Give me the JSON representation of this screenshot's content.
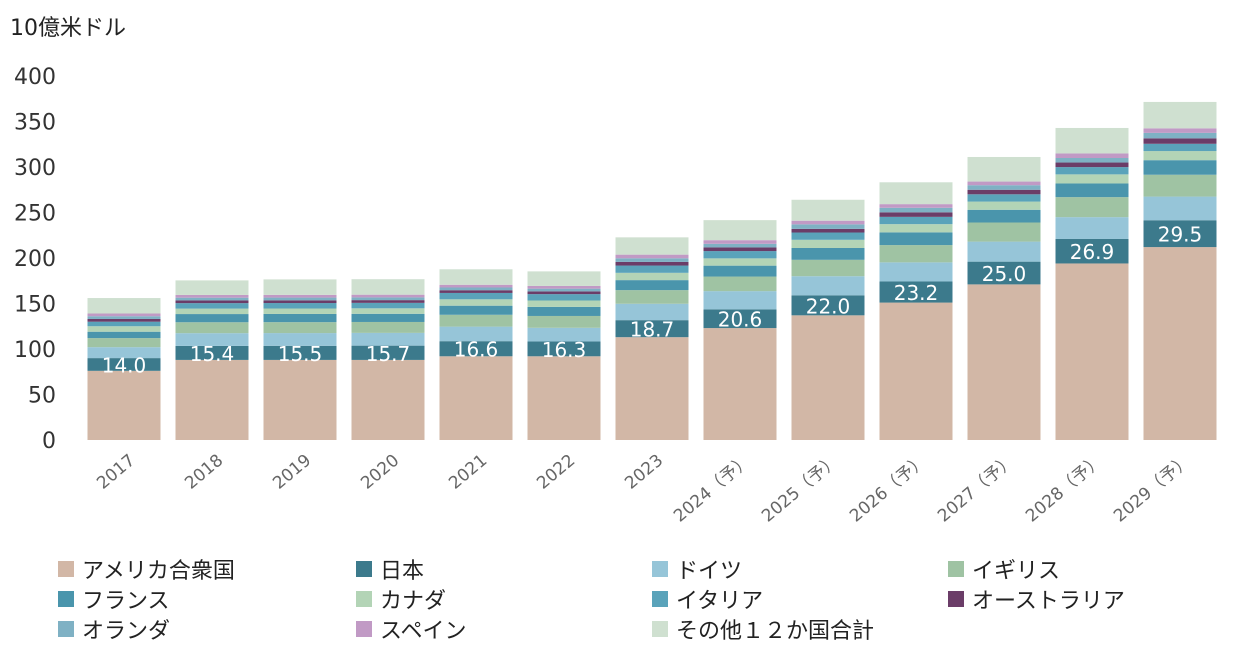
{
  "chart_data": {
    "type": "bar",
    "stacked": true,
    "unit_label": "10億米ドル",
    "categories": [
      "2017",
      "2018",
      "2019",
      "2020",
      "2021",
      "2022",
      "2023",
      "2024（予）",
      "2025（予）",
      "2026（予）",
      "2027（予）",
      "2028（予）",
      "2029（予）"
    ],
    "ylim": [
      0,
      400
    ],
    "yticks": [
      0,
      50,
      100,
      150,
      200,
      250,
      300,
      350,
      400
    ],
    "grid": false,
    "legend_position": "bottom",
    "series": [
      {
        "name": "アメリカ合衆国",
        "color": "#d2b7a6",
        "values": [
          76,
          88,
          88,
          88,
          92,
          92,
          113,
          123,
          137,
          151,
          171,
          194,
          212
        ]
      },
      {
        "name": "日本",
        "color": "#3c7a8c",
        "values": [
          14.0,
          15.4,
          15.5,
          15.7,
          16.6,
          16.3,
          18.7,
          20.6,
          22.0,
          23.2,
          25.0,
          26.9,
          29.5
        ]
      },
      {
        "name": "ドイツ",
        "color": "#96c5d8",
        "values": [
          12,
          14,
          14,
          14,
          16,
          15,
          18,
          20,
          21,
          21,
          22,
          24,
          26
        ]
      },
      {
        "name": "イギリス",
        "color": "#9fc3a3",
        "values": [
          10,
          12,
          12,
          12,
          13,
          13,
          15,
          16,
          18,
          19,
          21,
          22,
          24
        ]
      },
      {
        "name": "フランス",
        "color": "#4a95ac",
        "values": [
          7,
          9,
          9,
          9,
          10,
          10,
          11,
          12,
          13,
          14,
          14,
          15,
          16
        ]
      },
      {
        "name": "カナダ",
        "color": "#b3d4b6",
        "values": [
          6,
          6,
          6,
          6,
          7,
          7,
          8,
          8,
          9,
          9,
          9,
          10,
          10
        ]
      },
      {
        "name": "イタリア",
        "color": "#5aa3ba",
        "values": [
          5,
          6,
          6,
          6,
          7,
          7,
          8,
          8,
          8,
          8,
          8,
          8,
          8
        ]
      },
      {
        "name": "オーストラリア",
        "color": "#6b3d68",
        "values": [
          3,
          3,
          3,
          3,
          3,
          3,
          4,
          4,
          4,
          5,
          5,
          5,
          6
        ]
      },
      {
        "name": "オランダ",
        "color": "#7fb1c4",
        "values": [
          3,
          3,
          3,
          3,
          3,
          3,
          4,
          4,
          5,
          5,
          5,
          5,
          6
        ]
      },
      {
        "name": "スペイン",
        "color": "#c19ac5",
        "values": [
          3,
          3,
          3,
          3,
          3,
          3,
          4,
          4,
          4,
          4,
          4,
          5,
          5
        ]
      },
      {
        "name": "その他１２か国合計",
        "color": "#cfe0d0",
        "values": [
          17,
          16,
          17,
          17,
          17,
          16,
          19,
          22,
          23,
          24,
          27,
          28,
          29
        ]
      }
    ],
    "data_labels": [
      "14.0",
      "15.4",
      "15.5",
      "15.7",
      "16.6",
      "16.3",
      "18.7",
      "20.6",
      "22.0",
      "23.2",
      "25.0",
      "26.9",
      "29.5"
    ],
    "data_label_series": "日本"
  }
}
